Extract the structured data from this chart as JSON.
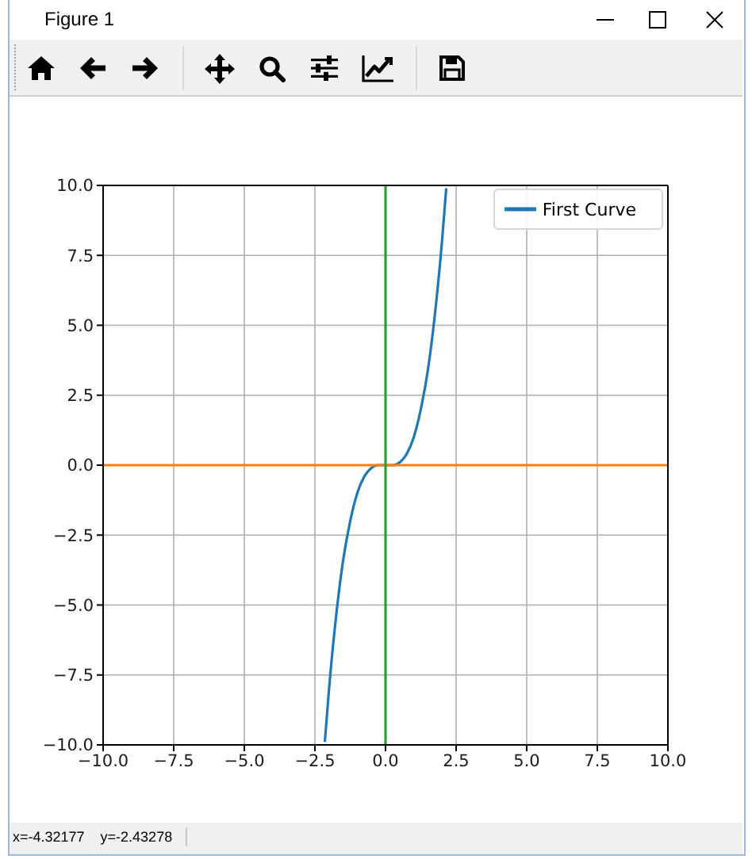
{
  "chart_data": {
    "type": "line",
    "annotations": [
      "Figure 1",
      "x=-4.32177    y=-2.43278"
    ],
    "x": [
      -2.15,
      -2,
      -1.75,
      -1.5,
      -1.25,
      -1,
      -0.75,
      -0.5,
      -0.25,
      0,
      0.25,
      0.5,
      0.75,
      1,
      1.25,
      1.5,
      1.75,
      2,
      2.15
    ],
    "series": [
      {
        "name": "First Curve",
        "color": "#1f77b4",
        "values": [
          -9.9,
          -8,
          -5.4,
          -3.4,
          -2,
          -1,
          -0.4,
          -0.1,
          0,
          0,
          0,
          0.1,
          0.4,
          1,
          2,
          3.4,
          5.4,
          8,
          9.9
        ]
      }
    ],
    "xlim": [
      -10,
      10
    ],
    "ylim": [
      -10,
      10
    ],
    "xticks": [
      {
        "value": -10,
        "label": "−10.0"
      },
      {
        "value": -7.5,
        "label": "−7.5"
      },
      {
        "value": -5,
        "label": "−5.0"
      },
      {
        "value": -2.5,
        "label": "−2.5"
      },
      {
        "value": 0,
        "label": "0.0"
      },
      {
        "value": 2.5,
        "label": "2.5"
      },
      {
        "value": 5,
        "label": "5.0"
      },
      {
        "value": 7.5,
        "label": "7.5"
      },
      {
        "value": 10,
        "label": "10.0"
      }
    ],
    "yticks": [
      {
        "value": -10,
        "label": "−10.0"
      },
      {
        "value": -7.5,
        "label": "−7.5"
      },
      {
        "value": -5,
        "label": "−5.0"
      },
      {
        "value": -2.5,
        "label": "−2.5"
      },
      {
        "value": 0,
        "label": "0.0"
      },
      {
        "value": 2.5,
        "label": "2.5"
      },
      {
        "value": 5,
        "label": "5.0"
      },
      {
        "value": 7.5,
        "label": "7.5"
      },
      {
        "value": 10,
        "label": "10.0"
      }
    ],
    "ref_lines": [
      {
        "axis": "y",
        "value": 0,
        "color": "#ff7f0e"
      },
      {
        "axis": "x",
        "value": 0,
        "color": "#2ca02c"
      }
    ],
    "grid": true,
    "legend": "top right"
  }
}
